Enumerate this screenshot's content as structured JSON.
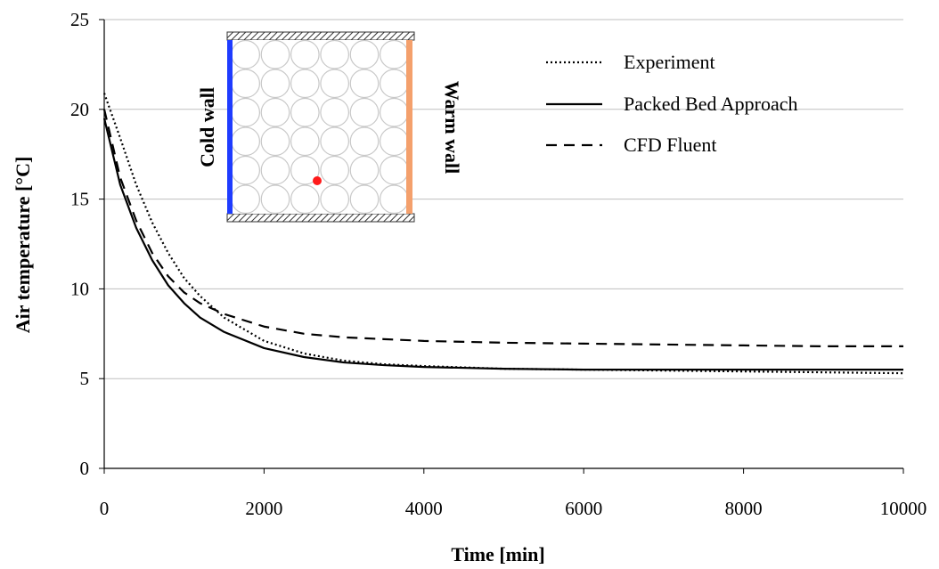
{
  "chart_data": {
    "type": "line",
    "xlabel": "Time [min]",
    "ylabel": "Air temperature [°C]",
    "xlim": [
      0,
      10000
    ],
    "ylim": [
      0,
      25
    ],
    "xticks": [
      "0",
      "2000",
      "4000",
      "6000",
      "8000",
      "10000"
    ],
    "yticks": [
      "0",
      "5",
      "10",
      "15",
      "20",
      "25"
    ],
    "grid": "horizontal",
    "legend_position": "top-right",
    "series": [
      {
        "name": "Experiment",
        "style": "dotted",
        "color": "#000000",
        "x": [
          0,
          200,
          400,
          600,
          800,
          1000,
          1200,
          1500,
          2000,
          2500,
          3000,
          3500,
          4000,
          5000,
          6000,
          7000,
          8000,
          9000,
          10000
        ],
        "y": [
          20.9,
          18.4,
          15.8,
          13.7,
          12.0,
          10.6,
          9.6,
          8.4,
          7.1,
          6.4,
          6.0,
          5.8,
          5.7,
          5.55,
          5.5,
          5.45,
          5.4,
          5.35,
          5.3
        ]
      },
      {
        "name": "Packed Bed Approach",
        "style": "solid",
        "color": "#000000",
        "x": [
          0,
          200,
          400,
          600,
          800,
          1000,
          1200,
          1500,
          2000,
          2500,
          3000,
          3500,
          4000,
          5000,
          6000,
          7000,
          8000,
          9000,
          10000
        ],
        "y": [
          19.5,
          15.8,
          13.4,
          11.6,
          10.2,
          9.2,
          8.4,
          7.6,
          6.7,
          6.2,
          5.9,
          5.75,
          5.65,
          5.55,
          5.5,
          5.5,
          5.5,
          5.5,
          5.5
        ]
      },
      {
        "name": "CFD Fluent",
        "style": "dashed",
        "color": "#000000",
        "x": [
          0,
          200,
          400,
          600,
          800,
          1000,
          1200,
          1500,
          2000,
          2500,
          3000,
          3500,
          4000,
          5000,
          6000,
          7000,
          8000,
          9000,
          10000
        ],
        "y": [
          20.0,
          16.2,
          13.8,
          12.0,
          10.7,
          9.8,
          9.2,
          8.6,
          7.9,
          7.5,
          7.3,
          7.2,
          7.1,
          7.0,
          6.95,
          6.9,
          6.85,
          6.8,
          6.8
        ]
      }
    ],
    "inset": {
      "cold_wall_label": "Cold wall",
      "warm_wall_label": "Warm wall",
      "cold_wall_color": "#1f3cff",
      "warm_wall_color": "#f4a06c",
      "sensor_color": "#ff1a1a",
      "rows": 6,
      "cols": 6
    }
  }
}
